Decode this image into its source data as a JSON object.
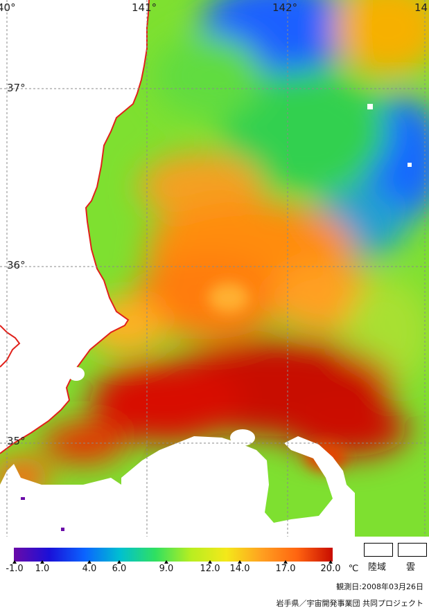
{
  "map": {
    "longitude_labels": [
      "40°",
      "141°",
      "142°",
      "14"
    ],
    "latitude_labels": [
      "37°",
      "36°",
      "35°"
    ],
    "coastline_color": "#e0201a"
  },
  "colorbar": {
    "ticks": [
      "-1.0",
      "1.0",
      "4.0",
      "6.0",
      "9.0",
      "12.0",
      "14.0",
      "17.0",
      "20.0"
    ],
    "unit": "℃",
    "stops": [
      "#6a0aa8",
      "#1a10d8",
      "#0a64ff",
      "#00c0d0",
      "#30e060",
      "#b8ee20",
      "#f4e81a",
      "#ffa020",
      "#ff6410",
      "#c80c00"
    ]
  },
  "legend": {
    "land": "陸域",
    "cloud": "雲"
  },
  "observation_date": "観測日:2008年03月26日",
  "credit": "岩手県／宇宙開発事業団 共同プロジェクト"
}
